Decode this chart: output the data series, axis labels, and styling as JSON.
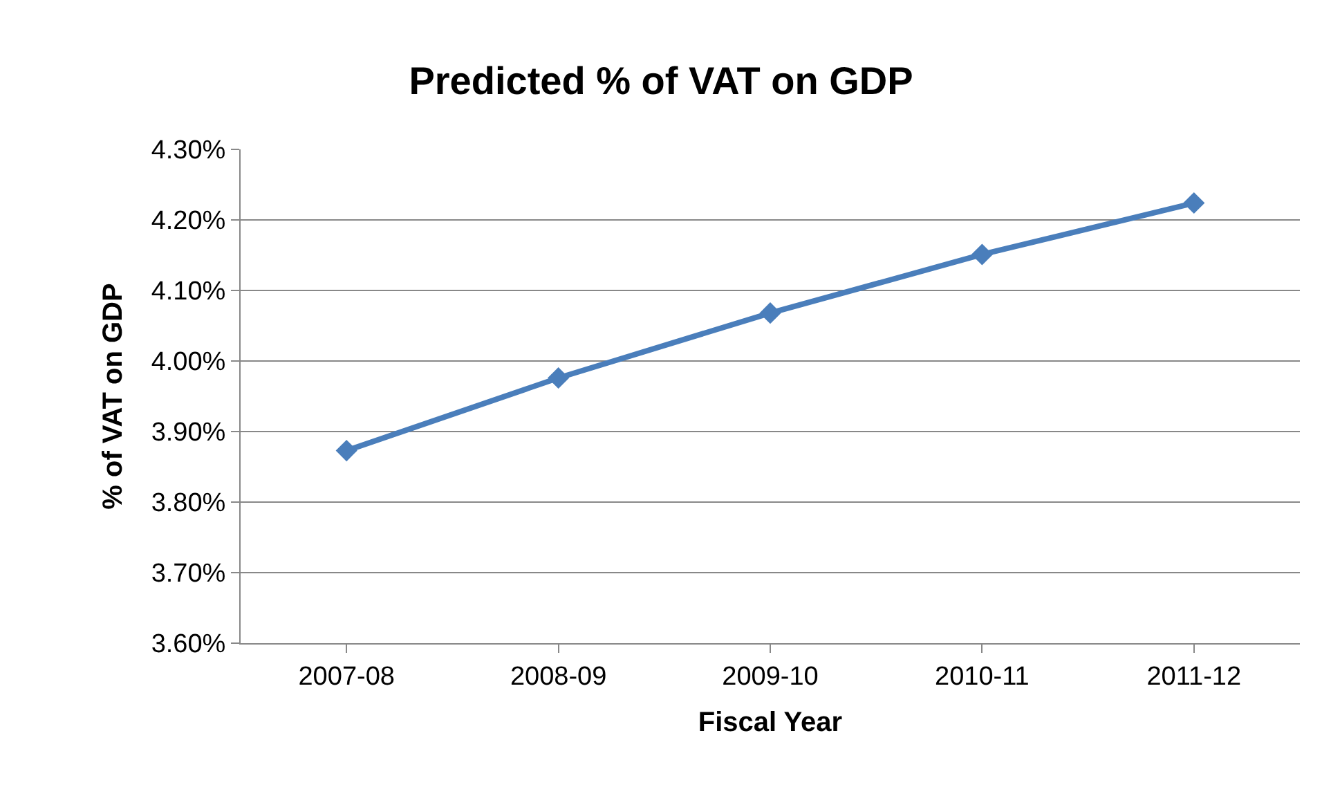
{
  "chart_data": {
    "type": "line",
    "title": "Predicted % of VAT on GDP",
    "xlabel": "Fiscal Year",
    "ylabel": "% of VAT on GDP",
    "categories": [
      "2007-08",
      "2008-09",
      "2009-10",
      "2010-11",
      "2011-12"
    ],
    "series": [
      {
        "color": "#4a7ebb",
        "values": [
          3.873,
          3.976,
          4.068,
          4.151,
          4.224
        ]
      }
    ],
    "ylim": [
      3.6,
      4.3
    ],
    "yticks": [
      {
        "value": 3.6,
        "label": "3.60%"
      },
      {
        "value": 3.7,
        "label": "3.70%"
      },
      {
        "value": 3.8,
        "label": "3.80%"
      },
      {
        "value": 3.9,
        "label": "3.90%"
      },
      {
        "value": 4.0,
        "label": "4.00%"
      },
      {
        "value": 4.1,
        "label": "4.10%"
      },
      {
        "value": 4.2,
        "label": "4.20%"
      },
      {
        "value": 4.3,
        "label": "4.30%"
      }
    ],
    "grid": "y",
    "marker": "diamond",
    "line_style": "solid"
  }
}
